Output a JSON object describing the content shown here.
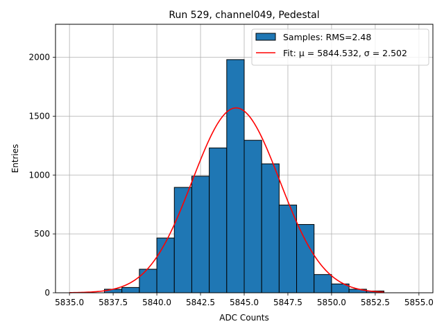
{
  "chart_data": {
    "type": "bar",
    "title": "Run 529, channel049, Pedestal",
    "xlabel": "ADC Counts",
    "ylabel": "Entries",
    "xlim": [
      5834.2,
      5855.8
    ],
    "ylim": [
      0,
      2280
    ],
    "grid": true,
    "legend_position": "top-right",
    "x_ticks": [
      "5835.0",
      "5837.5",
      "5840.0",
      "5842.5",
      "5845.0",
      "5847.5",
      "5850.0",
      "5852.5",
      "5855.0"
    ],
    "x_tick_values": [
      5835.0,
      5837.5,
      5840.0,
      5842.5,
      5845.0,
      5847.5,
      5850.0,
      5852.5,
      5855.0
    ],
    "y_ticks": [
      "0",
      "500",
      "1000",
      "1500",
      "2000"
    ],
    "y_tick_values": [
      0,
      500,
      1000,
      1500,
      2000
    ],
    "histogram": {
      "name": "Samples: RMS=2.48",
      "color": "#1f77b4",
      "edge_color": "#000000",
      "bin_edges": [
        5837,
        5838,
        5839,
        5840,
        5841,
        5842,
        5843,
        5844,
        5845,
        5846,
        5847,
        5848,
        5849,
        5850,
        5851,
        5852,
        5853
      ],
      "counts": [
        30,
        45,
        200,
        465,
        895,
        990,
        1230,
        1980,
        1295,
        1095,
        745,
        580,
        155,
        75,
        30,
        15
      ]
    },
    "fit": {
      "name": "Fit: μ = 5844.532, σ = 2.502",
      "color": "#ff0000",
      "mu": 5844.532,
      "sigma": 2.502,
      "amplitude": 1570,
      "x_range": [
        5835.0,
        5853.0
      ]
    }
  }
}
